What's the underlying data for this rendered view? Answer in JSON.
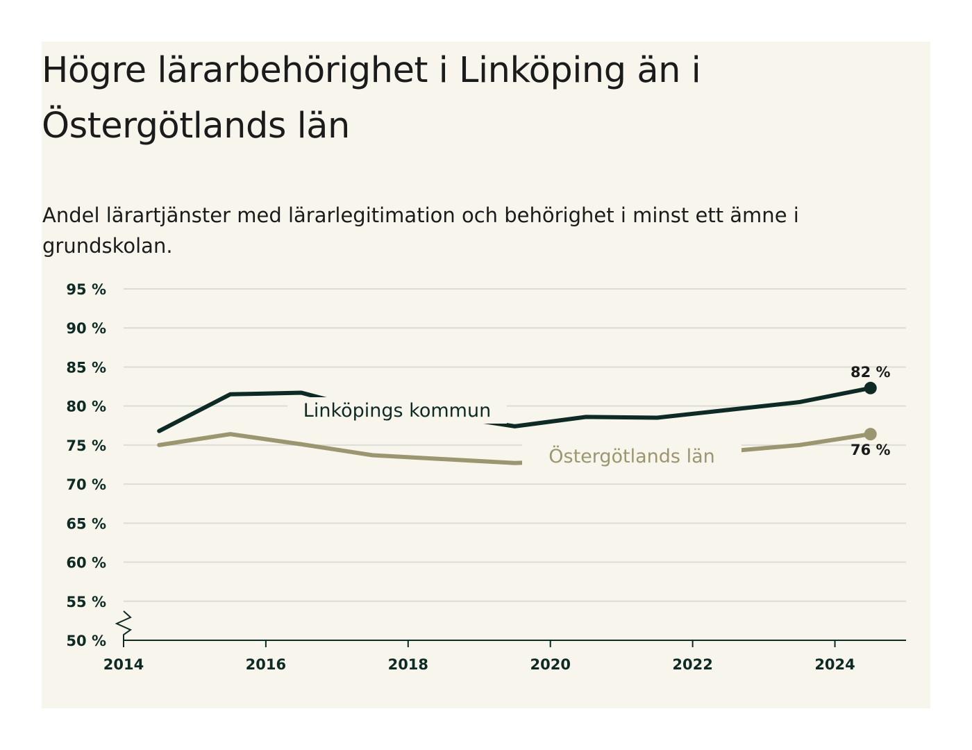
{
  "title": "Högre lärarbehörighet i Linköping än i Östergötlands län",
  "subtitle": "Andel lärartjänster med lärarlegitimation och behörighet i minst ett ämne i grundskolan.",
  "colors": {
    "background": "#f7f5ec",
    "linkoping": "#0e2a25",
    "ostergotland": "#9b9670",
    "grid": "#dcdcd6",
    "axis": "#0e2a25"
  },
  "chart_data": {
    "type": "line",
    "x": [
      2014.5,
      2015.5,
      2016.5,
      2017.5,
      2018.5,
      2019.5,
      2020.5,
      2021.5,
      2022.5,
      2023.5,
      2024.5
    ],
    "series": [
      {
        "name": "Linköpings kommun",
        "color": "#0e2a25",
        "values": [
          76.8,
          81.5,
          81.7,
          79.3,
          78.8,
          77.4,
          78.6,
          78.5,
          79.5,
          80.5,
          82.3
        ],
        "end_label": "82 %"
      },
      {
        "name": "Östergötlands län",
        "color": "#9b9670",
        "values": [
          75.0,
          76.4,
          75.1,
          73.7,
          73.2,
          72.7,
          73.0,
          73.3,
          74.2,
          75.0,
          76.4
        ],
        "end_label": "76 %"
      }
    ],
    "xlim": [
      2014,
      2025
    ],
    "ylim": [
      50,
      95
    ],
    "x_ticks": [
      2014,
      2016,
      2018,
      2020,
      2022,
      2024
    ],
    "x_tick_labels": [
      "2014",
      "2016",
      "2018",
      "2020",
      "2022",
      "2024"
    ],
    "y_ticks": [
      50,
      55,
      60,
      65,
      70,
      75,
      80,
      85,
      90,
      95
    ],
    "y_tick_labels": [
      "50 %",
      "55 %",
      "60 %",
      "65 %",
      "70 %",
      "75 %",
      "80 %",
      "85 %",
      "90 %",
      "95 %"
    ],
    "grid": "horizontal",
    "axis_break": true,
    "xlabel": "",
    "ylabel": ""
  }
}
